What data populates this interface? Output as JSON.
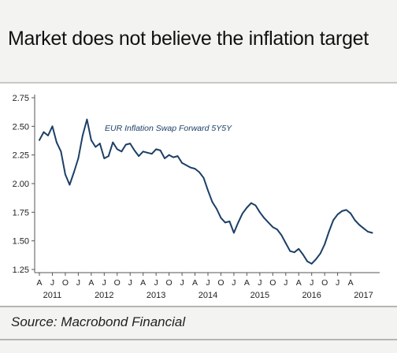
{
  "header": {
    "title": "Market does not believe the inflation target"
  },
  "footer": {
    "source": "Source: Macrobond Financial"
  },
  "chart_data": {
    "type": "line",
    "title": "Market does not believe the inflation target",
    "xlabel": "",
    "ylabel": "",
    "ylim": [
      1.25,
      2.75
    ],
    "y_ticks": [
      "2.75",
      "2.50",
      "2.25",
      "2.00",
      "1.75",
      "1.50",
      "1.25"
    ],
    "x_range": [
      "2011-04",
      "2017-10"
    ],
    "x_month_ticks": [
      "A",
      "J",
      "O",
      "J",
      "A",
      "J",
      "O",
      "J",
      "A",
      "J",
      "O",
      "J",
      "A",
      "J",
      "O",
      "J",
      "A",
      "J",
      "O",
      "J",
      "A",
      "J",
      "O",
      "J",
      "A"
    ],
    "x_year_labels": [
      "2011",
      "2012",
      "2013",
      "2014",
      "2015",
      "2016",
      "2017"
    ],
    "grid": false,
    "colors": {
      "line": "#1c3f66",
      "axis": "#555555"
    },
    "series": [
      {
        "name": "EUR Inflation Swap Forward 5Y5Y",
        "x": [
          "2011-04",
          "2011-05",
          "2011-06",
          "2011-07",
          "2011-08",
          "2011-09",
          "2011-10",
          "2011-11",
          "2011-12",
          "2012-01",
          "2012-02",
          "2012-03",
          "2012-04",
          "2012-05",
          "2012-06",
          "2012-07",
          "2012-08",
          "2012-09",
          "2012-10",
          "2012-11",
          "2012-12",
          "2013-01",
          "2013-02",
          "2013-03",
          "2013-04",
          "2013-05",
          "2013-06",
          "2013-07",
          "2013-08",
          "2013-09",
          "2013-10",
          "2013-11",
          "2013-12",
          "2014-01",
          "2014-02",
          "2014-03",
          "2014-04",
          "2014-05",
          "2014-06",
          "2014-07",
          "2014-08",
          "2014-09",
          "2014-10",
          "2014-11",
          "2014-12",
          "2015-01",
          "2015-02",
          "2015-03",
          "2015-04",
          "2015-05",
          "2015-06",
          "2015-07",
          "2015-08",
          "2015-09",
          "2015-10",
          "2015-11",
          "2015-12",
          "2016-01",
          "2016-02",
          "2016-03",
          "2016-04",
          "2016-05",
          "2016-06",
          "2016-07",
          "2016-08",
          "2016-09",
          "2016-10",
          "2016-11",
          "2016-12",
          "2017-01",
          "2017-02",
          "2017-03",
          "2017-04",
          "2017-05",
          "2017-06",
          "2017-07",
          "2017-08",
          "2017-09"
        ],
        "values": [
          2.38,
          2.45,
          2.42,
          2.5,
          2.36,
          2.28,
          2.08,
          1.99,
          2.1,
          2.22,
          2.42,
          2.56,
          2.38,
          2.32,
          2.35,
          2.22,
          2.24,
          2.36,
          2.3,
          2.28,
          2.34,
          2.35,
          2.29,
          2.24,
          2.28,
          2.27,
          2.26,
          2.3,
          2.29,
          2.22,
          2.25,
          2.23,
          2.24,
          2.18,
          2.16,
          2.14,
          2.13,
          2.1,
          2.05,
          1.94,
          1.84,
          1.78,
          1.7,
          1.66,
          1.67,
          1.57,
          1.66,
          1.74,
          1.79,
          1.83,
          1.81,
          1.75,
          1.7,
          1.66,
          1.62,
          1.6,
          1.55,
          1.48,
          1.41,
          1.4,
          1.43,
          1.38,
          1.32,
          1.3,
          1.34,
          1.39,
          1.47,
          1.58,
          1.68,
          1.73,
          1.76,
          1.77,
          1.74,
          1.68,
          1.64,
          1.61,
          1.58,
          1.57
        ]
      }
    ],
    "annotations": [
      "EUR Inflation Swap Forward 5Y5Y"
    ]
  }
}
